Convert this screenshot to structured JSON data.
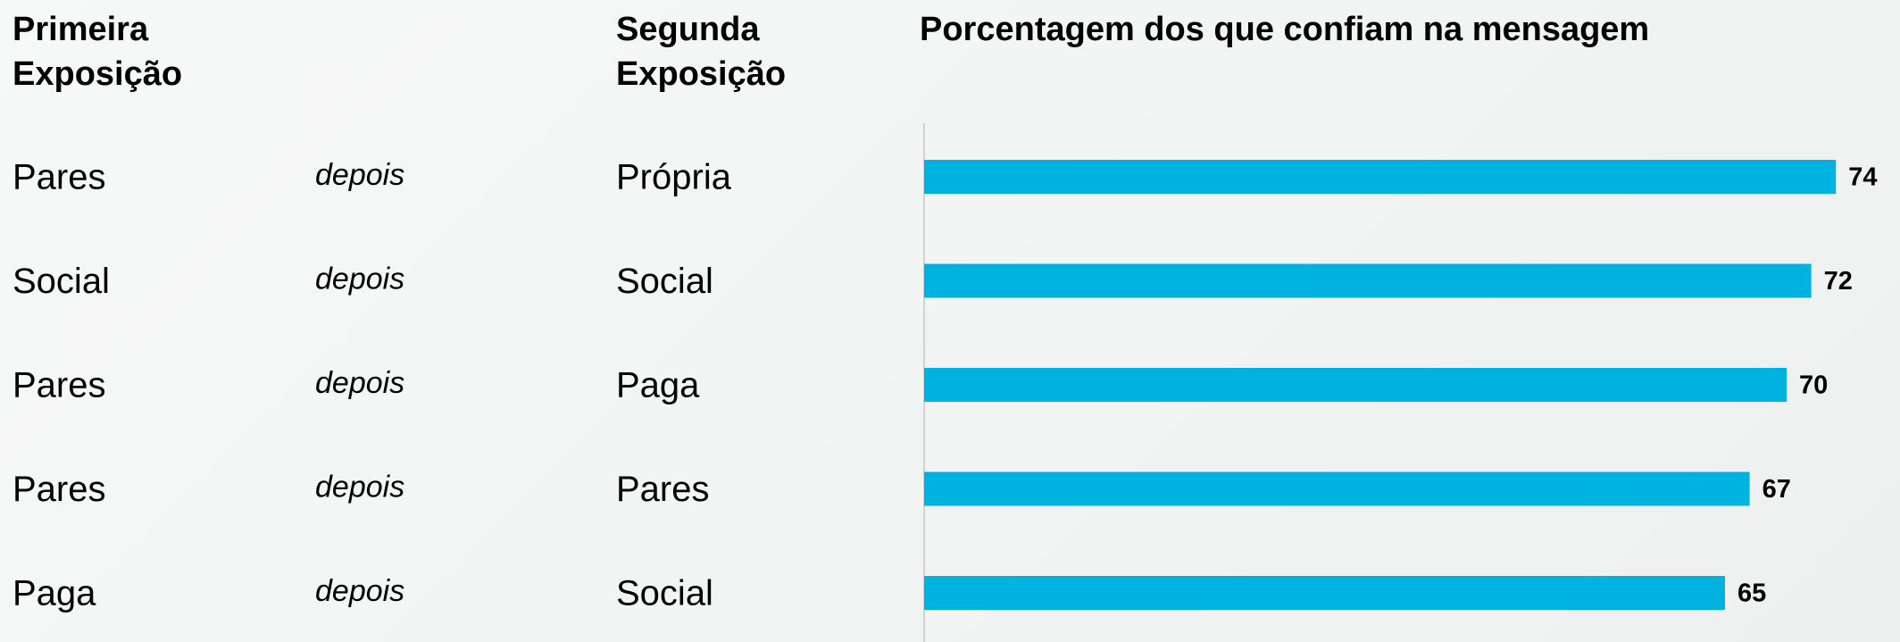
{
  "chart_data": {
    "type": "bar",
    "title": "Porcentagem dos que confiam na mensagem",
    "first_header": "Primeira Exposição",
    "second_header": "Segunda Exposição",
    "first_exposure": [
      "Pares",
      "Social",
      "Pares",
      "Pares",
      "Paga"
    ],
    "connector": [
      "depois",
      "depois",
      "depois",
      "depois",
      "depois"
    ],
    "categories": [
      "Própria",
      "Social",
      "Paga",
      "Pares",
      "Social"
    ],
    "values": [
      74,
      72,
      70,
      67,
      65
    ],
    "color": "#00b2e0",
    "xlim": [
      0,
      80
    ]
  }
}
